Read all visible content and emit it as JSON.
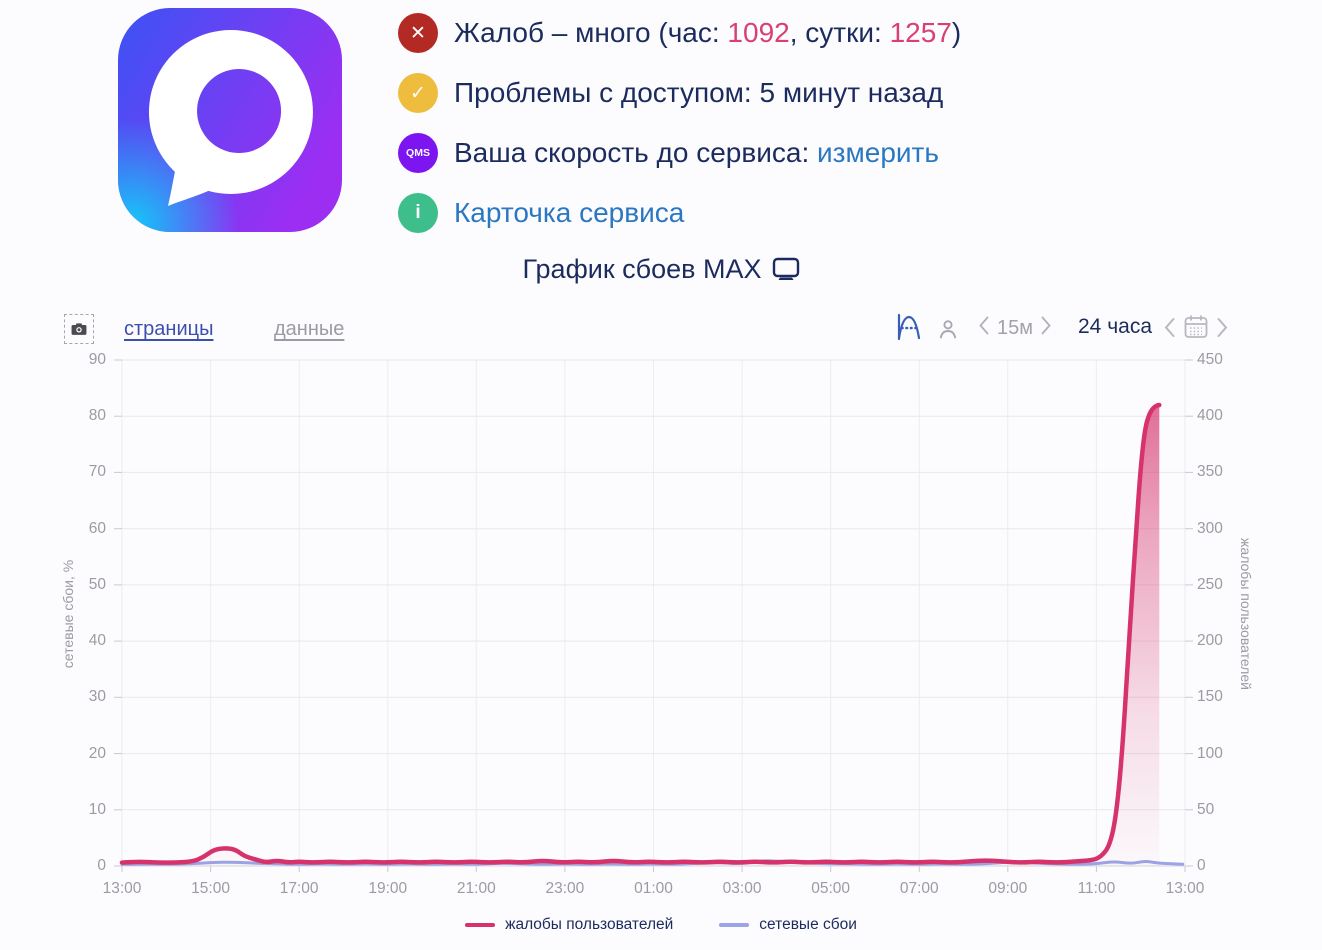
{
  "app": {
    "name": "MAX"
  },
  "status": {
    "rows": [
      {
        "icon": {
          "name": "error-x-icon",
          "bg": "#b32a25",
          "glyph": "✕"
        },
        "segments": [
          {
            "text": "Жалоб – много (час: ",
            "style": "text"
          },
          {
            "text": "1092",
            "style": "accent"
          },
          {
            "text": ", сутки: ",
            "style": "text"
          },
          {
            "text": "1257",
            "style": "accent"
          },
          {
            "text": ")",
            "style": "text"
          }
        ]
      },
      {
        "icon": {
          "name": "ok-check-icon",
          "bg": "#eebd3d",
          "glyph": "✓"
        },
        "segments": [
          {
            "text": "Проблемы с доступом: 5 минут назад",
            "style": "text"
          }
        ]
      },
      {
        "icon": {
          "name": "qms-icon",
          "bg": "#7d15f0",
          "glyph": "QMS"
        },
        "segments": [
          {
            "text": "Ваша скорость до сервиса: ",
            "style": "text"
          },
          {
            "text": "измерить",
            "style": "link"
          }
        ]
      },
      {
        "icon": {
          "name": "info-icon",
          "bg": "#3dbe8b",
          "glyph": "i"
        },
        "segments": [
          {
            "text": "Карточка сервиса",
            "style": "link"
          }
        ]
      }
    ]
  },
  "title": {
    "text": "График сбоев MAX"
  },
  "toolbar": {
    "tabs": [
      {
        "label": "страницы",
        "active": true
      },
      {
        "label": "данные",
        "active": false
      }
    ],
    "interval": {
      "label": "15м"
    },
    "range_label": "24 часа"
  },
  "chart_data": {
    "type": "line",
    "title": "График сбоев MAX",
    "grid": true,
    "legend_position": "bottom",
    "x_axis": {
      "labels": [
        "13:00",
        "15:00",
        "17:00",
        "19:00",
        "21:00",
        "23:00",
        "01:00",
        "03:00",
        "05:00",
        "07:00",
        "09:00",
        "11:00",
        "13:00"
      ],
      "hours": [
        0,
        2,
        4,
        6,
        8,
        10,
        12,
        14,
        16,
        18,
        20,
        22,
        24
      ],
      "range_hours": [
        0,
        24
      ]
    },
    "y_left": {
      "label": "сетевые сбои, %",
      "ticks": [
        0,
        10,
        20,
        30,
        40,
        50,
        60,
        70,
        80,
        90
      ],
      "range": [
        0,
        90
      ]
    },
    "y_right": {
      "label": "жалобы пользователей",
      "ticks": [
        0,
        50,
        100,
        150,
        200,
        250,
        300,
        350,
        400,
        450
      ],
      "range": [
        0,
        450
      ]
    },
    "series": [
      {
        "name": "жалобы пользователей",
        "axis": "right",
        "color": "#d6336c",
        "area": true,
        "points": [
          [
            0,
            3
          ],
          [
            0.4,
            4
          ],
          [
            0.8,
            3
          ],
          [
            1.2,
            3
          ],
          [
            1.6,
            4
          ],
          [
            1.85,
            8
          ],
          [
            2.05,
            14
          ],
          [
            2.3,
            16
          ],
          [
            2.55,
            15
          ],
          [
            2.75,
            9
          ],
          [
            3.0,
            6
          ],
          [
            3.25,
            3
          ],
          [
            3.5,
            5
          ],
          [
            3.75,
            3
          ],
          [
            4.0,
            4
          ],
          [
            4.3,
            3
          ],
          [
            4.7,
            4
          ],
          [
            5.1,
            3
          ],
          [
            5.5,
            4
          ],
          [
            5.9,
            3
          ],
          [
            6.3,
            4
          ],
          [
            6.7,
            3
          ],
          [
            7.1,
            4
          ],
          [
            7.5,
            3
          ],
          [
            7.9,
            4
          ],
          [
            8.3,
            3
          ],
          [
            8.7,
            4
          ],
          [
            9.1,
            3
          ],
          [
            9.5,
            5
          ],
          [
            9.9,
            3
          ],
          [
            10.3,
            4
          ],
          [
            10.7,
            3
          ],
          [
            11.1,
            5
          ],
          [
            11.5,
            3
          ],
          [
            11.9,
            4
          ],
          [
            12.3,
            3
          ],
          [
            12.7,
            4
          ],
          [
            13.1,
            3
          ],
          [
            13.5,
            4
          ],
          [
            13.9,
            3
          ],
          [
            14.3,
            4
          ],
          [
            14.7,
            3
          ],
          [
            15.1,
            4
          ],
          [
            15.5,
            3
          ],
          [
            15.9,
            4
          ],
          [
            16.3,
            3
          ],
          [
            16.7,
            4
          ],
          [
            17.1,
            3
          ],
          [
            17.5,
            4
          ],
          [
            17.9,
            3
          ],
          [
            18.3,
            4
          ],
          [
            18.7,
            3
          ],
          [
            19.1,
            4
          ],
          [
            19.5,
            5
          ],
          [
            19.9,
            4
          ],
          [
            20.3,
            3
          ],
          [
            20.7,
            4
          ],
          [
            21.1,
            3
          ],
          [
            21.5,
            4
          ],
          [
            21.9,
            5
          ],
          [
            22.1,
            8
          ],
          [
            22.3,
            18
          ],
          [
            22.45,
            45
          ],
          [
            22.6,
            110
          ],
          [
            22.75,
            210
          ],
          [
            22.9,
            300
          ],
          [
            23.0,
            355
          ],
          [
            23.1,
            390
          ],
          [
            23.2,
            403
          ],
          [
            23.32,
            409
          ],
          [
            23.42,
            410
          ]
        ]
      },
      {
        "name": "сетевые сбои",
        "axis": "left",
        "color": "#9aa4e6",
        "area": true,
        "points": [
          [
            0,
            0.3
          ],
          [
            0.5,
            0.4
          ],
          [
            1,
            0.3
          ],
          [
            1.5,
            0.4
          ],
          [
            2,
            0.6
          ],
          [
            2.5,
            0.7
          ],
          [
            3,
            0.5
          ],
          [
            3.5,
            0.4
          ],
          [
            4,
            0.3
          ],
          [
            4.5,
            0.4
          ],
          [
            5,
            0.3
          ],
          [
            5.5,
            0.4
          ],
          [
            6,
            0.3
          ],
          [
            6.5,
            0.4
          ],
          [
            7,
            0.3
          ],
          [
            7.5,
            0.4
          ],
          [
            8,
            0.3
          ],
          [
            8.5,
            0.5
          ],
          [
            9,
            0.4
          ],
          [
            9.5,
            0.3
          ],
          [
            10,
            0.4
          ],
          [
            10.5,
            0.3
          ],
          [
            11,
            0.4
          ],
          [
            11.5,
            0.3
          ],
          [
            12,
            0.4
          ],
          [
            12.5,
            0.3
          ],
          [
            13,
            0.5
          ],
          [
            13.5,
            0.6
          ],
          [
            14,
            0.4
          ],
          [
            14.5,
            1.0
          ],
          [
            14.8,
            0.8
          ],
          [
            15.2,
            0.9
          ],
          [
            15.6,
            0.5
          ],
          [
            16,
            0.4
          ],
          [
            16.5,
            0.4
          ],
          [
            17,
            0.3
          ],
          [
            17.5,
            0.4
          ],
          [
            18,
            0.3
          ],
          [
            18.5,
            0.4
          ],
          [
            19,
            0.3
          ],
          [
            19.5,
            0.4
          ],
          [
            20.2,
            0.8
          ],
          [
            20.6,
            0.5
          ],
          [
            21,
            0.4
          ],
          [
            21.5,
            0.3
          ],
          [
            22,
            0.4
          ],
          [
            22.4,
            0.8
          ],
          [
            22.8,
            0.4
          ],
          [
            23.1,
            0.9
          ],
          [
            23.4,
            0.5
          ],
          [
            23.7,
            0.4
          ],
          [
            23.95,
            0.3
          ]
        ]
      }
    ]
  }
}
